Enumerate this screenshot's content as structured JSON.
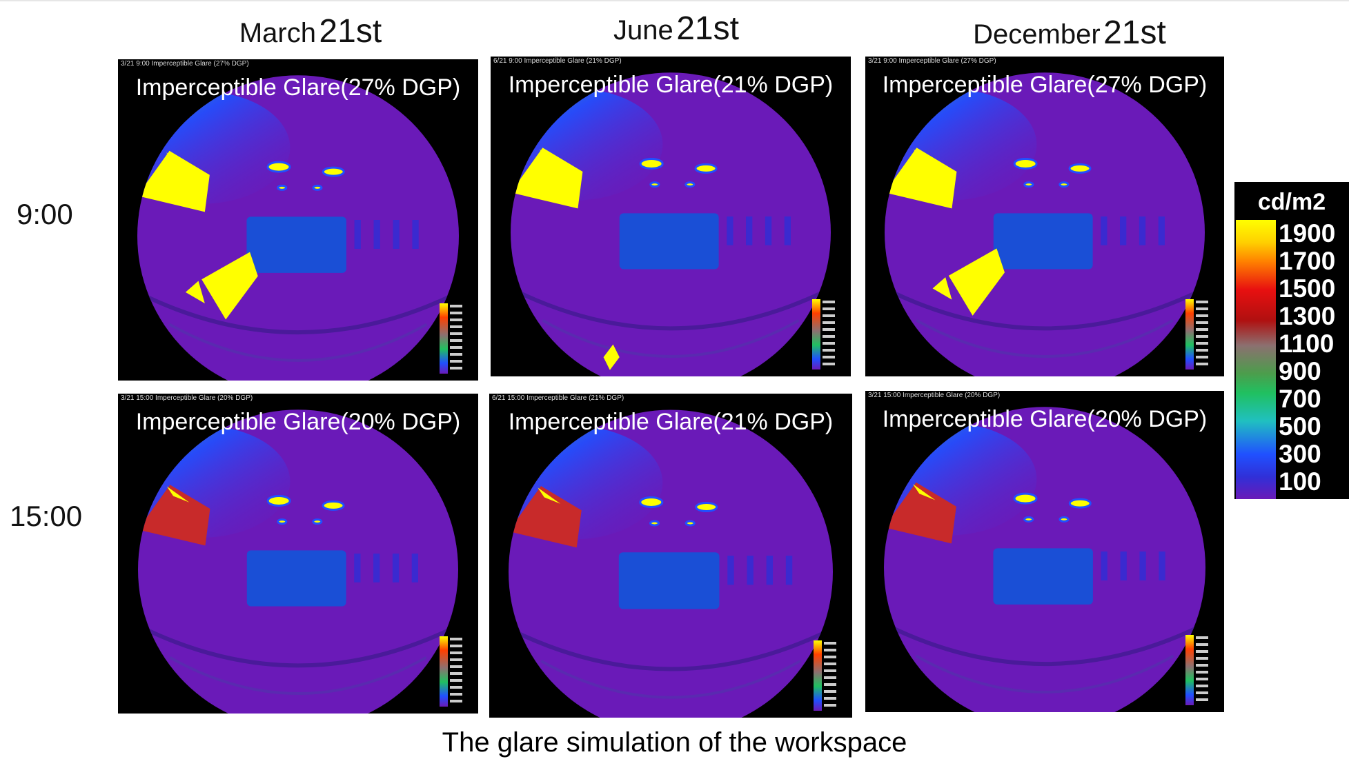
{
  "columns": [
    {
      "month": "March",
      "day": "21st"
    },
    {
      "month": "June",
      "day": "21st"
    },
    {
      "month": "December",
      "day": "21st"
    }
  ],
  "rows": [
    "9:00",
    "15:00"
  ],
  "panels": [
    {
      "header": "3/21 9:00  Imperceptible Glare (27% DGP)",
      "title": "Imperceptible Glare(27% DGP)"
    },
    {
      "header": "6/21 9:00  Imperceptible Glare (21% DGP)",
      "title": "Imperceptible Glare(21% DGP)"
    },
    {
      "header": "3/21 9:00  Imperceptible Glare (27% DGP)",
      "title": "Imperceptible Glare(27% DGP)"
    },
    {
      "header": "3/21 15:00  Imperceptible Glare (20% DGP)",
      "title": "Imperceptible Glare(20% DGP)"
    },
    {
      "header": "6/21 15:00  Imperceptible Glare (21% DGP)",
      "title": "Imperceptible Glare(21% DGP)"
    },
    {
      "header": "3/21 15:00  Imperceptible Glare (20% DGP)",
      "title": "Imperceptible Glare(20% DGP)"
    }
  ],
  "legend": {
    "unit": "cd/m2",
    "ticks": [
      "1900",
      "1700",
      "1500",
      "1300",
      "1100",
      "900",
      "700",
      "500",
      "300",
      "100"
    ]
  },
  "colors": {
    "fisheye": "#6a1ab8",
    "screen": "#1a4fd6",
    "glare": "#ffff00",
    "glare_red": "#c82a2a",
    "background": "#000000"
  },
  "caption": "The glare simulation of the workspace"
}
